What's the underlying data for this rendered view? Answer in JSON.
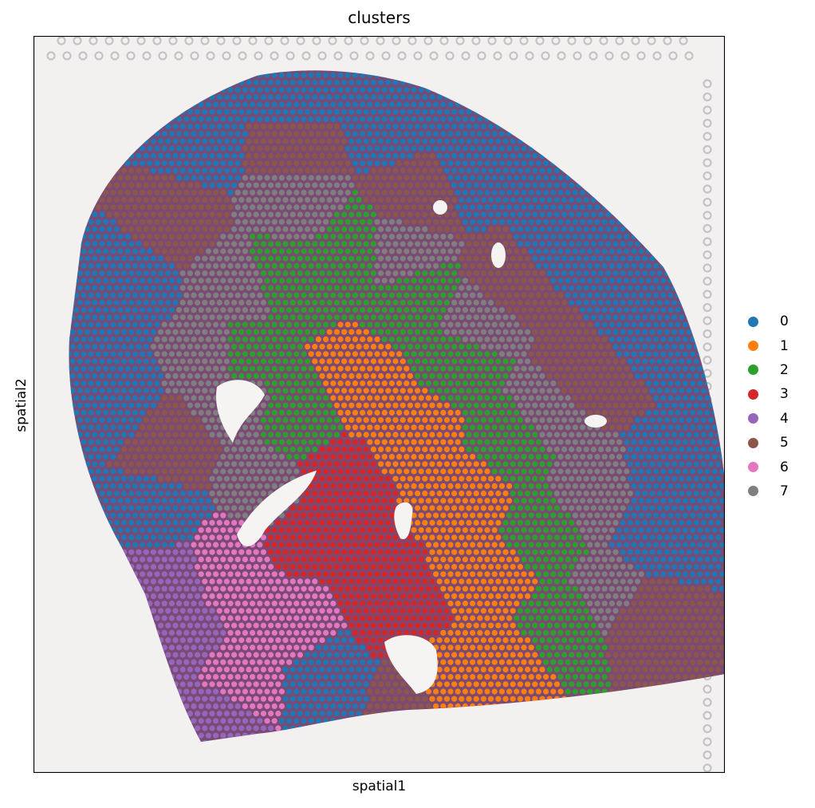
{
  "chart_data": {
    "type": "scatter",
    "title": "clusters",
    "xlabel": "spatial1",
    "ylabel": "spatial2",
    "legend_position": "right",
    "grid": false,
    "ticks": false,
    "background": "tissue histology image",
    "categories": [
      "0",
      "1",
      "2",
      "3",
      "4",
      "5",
      "6",
      "7"
    ],
    "series": [
      {
        "name": "0",
        "color": "#1f77b4"
      },
      {
        "name": "1",
        "color": "#ff7f0e"
      },
      {
        "name": "2",
        "color": "#2ca02c"
      },
      {
        "name": "3",
        "color": "#d62728"
      },
      {
        "name": "4",
        "color": "#9467bd"
      },
      {
        "name": "5",
        "color": "#8c564b"
      },
      {
        "name": "6",
        "color": "#e377c2"
      },
      {
        "name": "7",
        "color": "#7f7f7f"
      }
    ]
  }
}
